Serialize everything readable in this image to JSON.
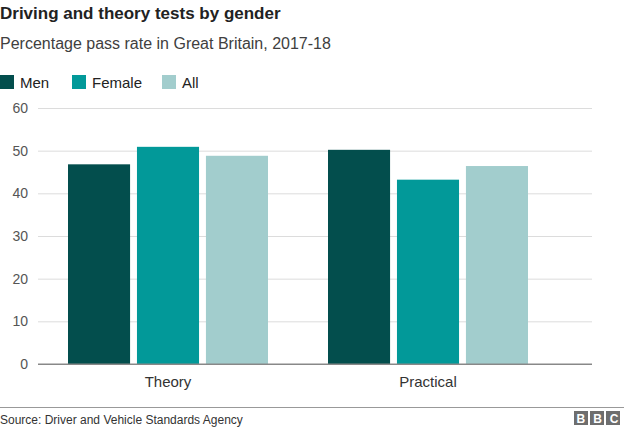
{
  "chart_data": {
    "type": "bar",
    "title": "Driving and theory tests by gender",
    "subtitle": "Percentage pass rate in Great Britain, 2017-18",
    "categories": [
      "Theory",
      "Practical"
    ],
    "series": [
      {
        "name": "Men",
        "color": "#034e4d",
        "values": [
          46.8,
          50.2
        ]
      },
      {
        "name": "Female",
        "color": "#029999",
        "values": [
          50.9,
          43.2
        ]
      },
      {
        "name": "All",
        "color": "#a2cdcd",
        "values": [
          48.8,
          46.4
        ]
      }
    ],
    "ylim": [
      0,
      60
    ],
    "yticks": [
      0,
      10,
      20,
      30,
      40,
      50,
      60
    ],
    "grid": true,
    "legend": "top-left",
    "source": "Source: Driver and Vehicle Standards Agency",
    "logo": "BBC"
  }
}
